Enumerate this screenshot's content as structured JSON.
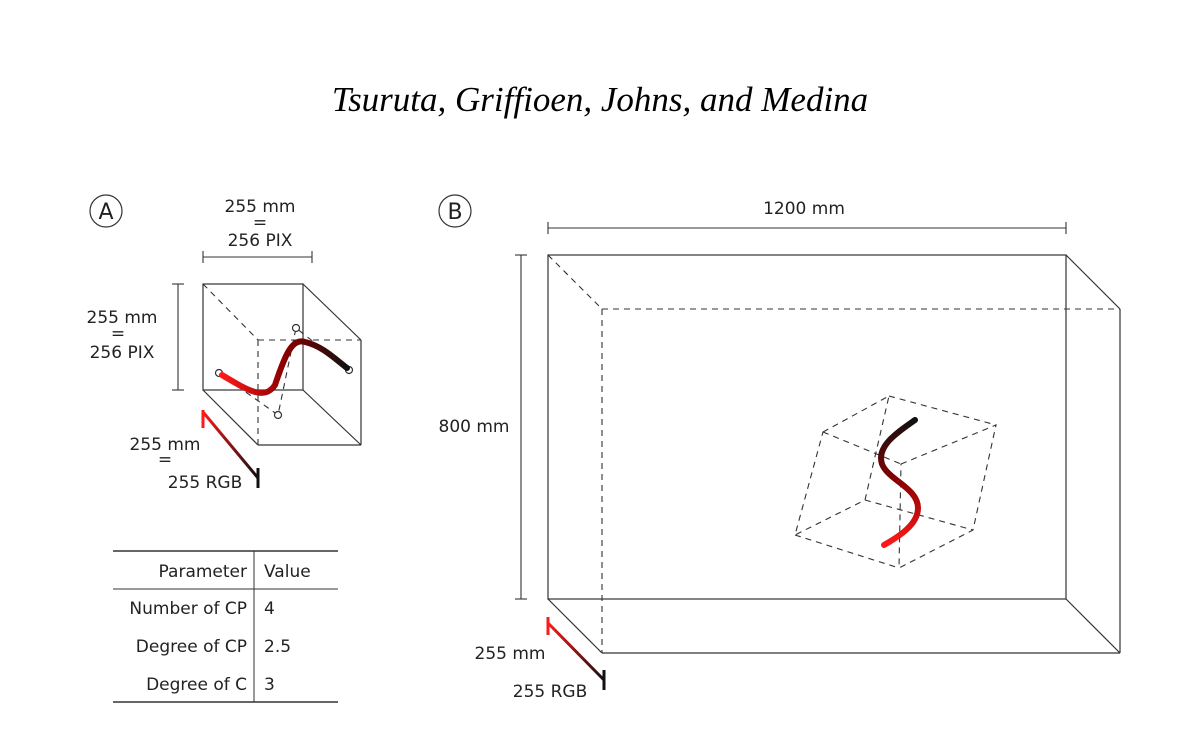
{
  "title": "Tsuruta, Griffioen, Johns, and Medina",
  "panel_a": {
    "letter": "A",
    "width_mm": "255 mm",
    "width_eq": "=",
    "width_pix": "256 PIX",
    "height_mm": "255 mm",
    "height_eq": "=",
    "height_pix": "256 PIX",
    "depth_mm": "255 mm",
    "depth_eq": "=",
    "depth_rgb": "255 RGB"
  },
  "panel_b": {
    "letter": "B",
    "width_mm": "1200 mm",
    "height_mm": "800 mm",
    "depth_mm": "255 mm",
    "depth_rgb": "255 RGB"
  },
  "table": {
    "headers": [
      "Parameter",
      "Value"
    ],
    "rows": [
      {
        "param": "Number of CP",
        "value": "4"
      },
      {
        "param": "Degree of CP",
        "value": "2.5"
      },
      {
        "param": "Degree of C",
        "value": "3"
      }
    ]
  },
  "colors": {
    "curve_start": "#ff1a1a",
    "curve_mid": "#8b0000",
    "curve_end": "#111111"
  }
}
